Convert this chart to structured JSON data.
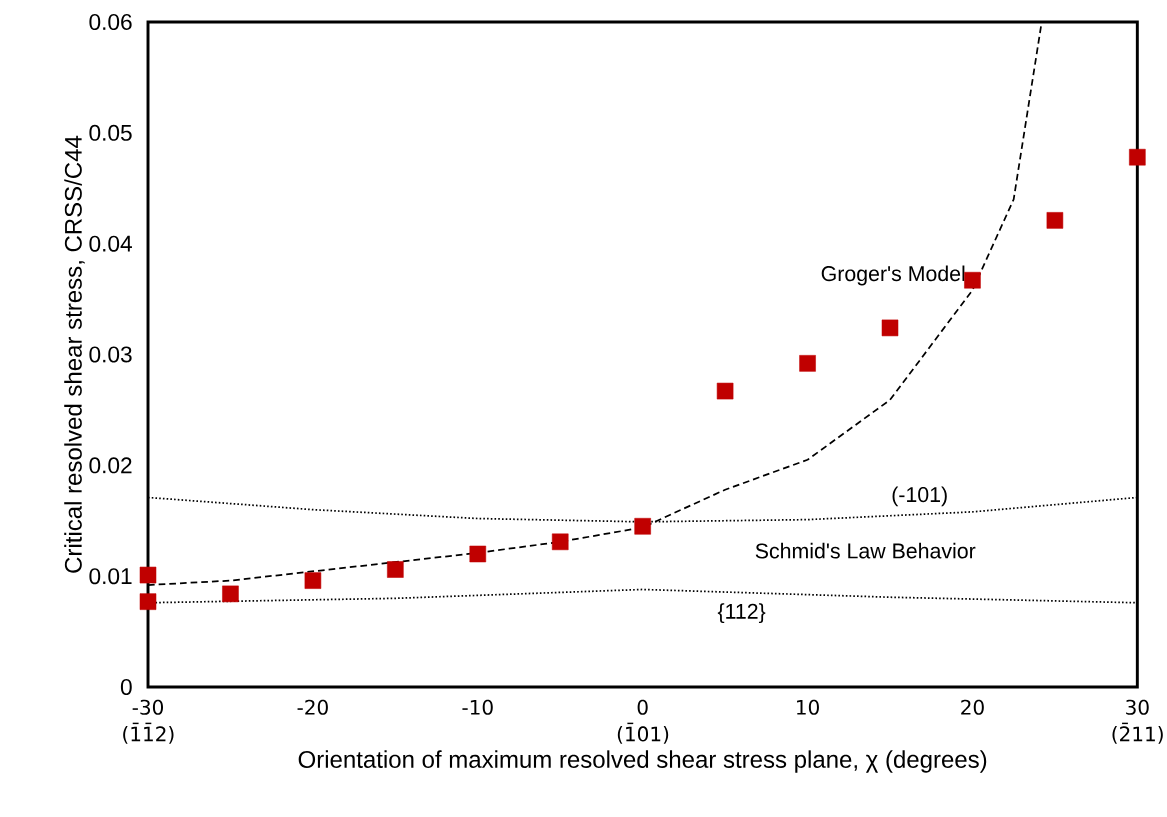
{
  "chart_data": {
    "type": "scatter",
    "xlabel": "Orientation of maximum resolved shear stress plane, χ (degrees)",
    "ylabel": "Critical resolved shear stress, CRSS/C44",
    "xlim": [
      -30,
      30
    ],
    "ylim": [
      0,
      0.06
    ],
    "xticks": [
      {
        "value": -30,
        "label": "-30 (1̄1̄2)"
      },
      -20,
      -10,
      {
        "value": 0,
        "label": "0 (1̄01)"
      },
      10,
      20,
      {
        "value": 30,
        "label": "30 (2̄11)"
      }
    ],
    "yticks": [
      0,
      0.01,
      0.02,
      0.03,
      0.04,
      0.05,
      0.06
    ],
    "grid": false,
    "legend": false,
    "series": [
      {
        "color": "#c00000",
        "marker": "square",
        "x": [
          -30,
          -30,
          -25,
          -20,
          -15,
          -10,
          -5,
          0,
          5,
          10,
          15,
          20,
          25,
          30
        ],
        "values": [
          0.0101,
          0.0077,
          0.0084,
          0.0096,
          0.0106,
          0.012,
          0.0131,
          0.0145,
          0.0267,
          0.0292,
          0.0324,
          0.0367,
          0.0421,
          0.0478
        ]
      },
      {
        "type": "line",
        "name": "Groger's Model",
        "color": "#000000",
        "line_style": "dashed",
        "marker": "none",
        "x": [
          -30,
          -25,
          -10,
          -5,
          0,
          5,
          10,
          15,
          20,
          22.5,
          24.2
        ],
        "values": [
          0.0092,
          0.0096,
          0.0121,
          0.0131,
          0.0144,
          0.0178,
          0.0205,
          0.0259,
          0.0358,
          0.044,
          0.06
        ]
      },
      {
        "type": "line",
        "name": "(-101)",
        "color": "#000000",
        "line_style": "dotted",
        "marker": "none",
        "x": [
          -30,
          -20,
          -10,
          0,
          10,
          20,
          30
        ],
        "values": [
          0.0171,
          0.016,
          0.0152,
          0.0149,
          0.0151,
          0.0158,
          0.0171
        ]
      },
      {
        "type": "line",
        "name": "{112}",
        "color": "#000000",
        "line_style": "dotted",
        "marker": "none",
        "x": [
          -30,
          -15,
          0,
          15,
          30
        ],
        "values": [
          0.0076,
          0.008,
          0.0088,
          0.0081,
          0.0076
        ]
      }
    ],
    "annotations": [
      "Schmid's Law Behavior"
    ]
  }
}
